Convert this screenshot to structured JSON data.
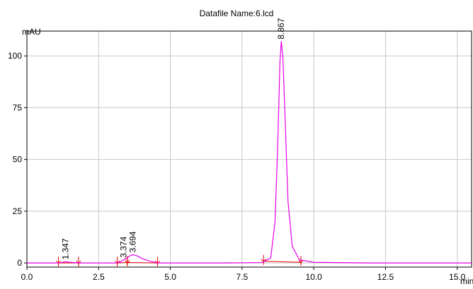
{
  "chart_data": {
    "type": "line",
    "title": "Datafile Name:6.lcd",
    "ylabel": "mAU",
    "xlabel": "min",
    "xlim": [
      0.0,
      15.5
    ],
    "ylim": [
      -2,
      112
    ],
    "grid": true,
    "x_ticks": [
      0.0,
      2.5,
      5.0,
      7.5,
      10.0,
      12.5,
      15.0
    ],
    "x_tick_labels": [
      "0.0",
      "2.5",
      "5.0",
      "7.5",
      "10.0",
      "12.5",
      "15.0"
    ],
    "y_ticks": [
      0,
      25,
      50,
      75,
      100
    ],
    "y_tick_labels": [
      "0",
      "25",
      "50",
      "75",
      "100"
    ],
    "series": [
      {
        "color": "#e600e6",
        "x": [
          0.0,
          1.0,
          1.2,
          1.347,
          1.5,
          1.8,
          2.5,
          3.1,
          3.25,
          3.374,
          3.5,
          3.6,
          3.694,
          3.85,
          4.0,
          4.3,
          4.6,
          5.5,
          7.0,
          8.2,
          8.5,
          8.65,
          8.75,
          8.82,
          8.867,
          8.92,
          9.0,
          9.1,
          9.25,
          9.5,
          10.0,
          12.0,
          15.5
        ],
        "y": [
          0.0,
          0.0,
          0.2,
          0.6,
          0.3,
          0.0,
          0.0,
          0.0,
          0.5,
          1.5,
          2.5,
          3.5,
          4.0,
          3.4,
          2.2,
          0.8,
          0.0,
          0.0,
          0.0,
          0.2,
          2.5,
          20.0,
          60.0,
          97.0,
          107.0,
          100.0,
          70.0,
          30.0,
          8.0,
          1.5,
          0.3,
          0.0,
          0.0
        ]
      }
    ],
    "peaks": [
      {
        "label": "1.347",
        "x": 1.347,
        "y": 0.6
      },
      {
        "label": "3.374",
        "x": 3.374,
        "y": 1.5
      },
      {
        "label": "3.694",
        "x": 3.694,
        "y": 4.0
      },
      {
        "label": "8.867",
        "x": 8.867,
        "y": 107.0
      }
    ],
    "baselines": [
      {
        "x": [
          1.1,
          1.8
        ],
        "y": [
          0.0,
          0.0
        ]
      },
      {
        "x": [
          3.15,
          3.5
        ],
        "y": [
          0.0,
          0.2
        ]
      },
      {
        "x": [
          3.5,
          4.55
        ],
        "y": [
          0.2,
          0.0
        ]
      },
      {
        "x": [
          8.25,
          9.55
        ],
        "y": [
          0.8,
          0.3
        ]
      }
    ],
    "baseline_color": "#e60000"
  }
}
